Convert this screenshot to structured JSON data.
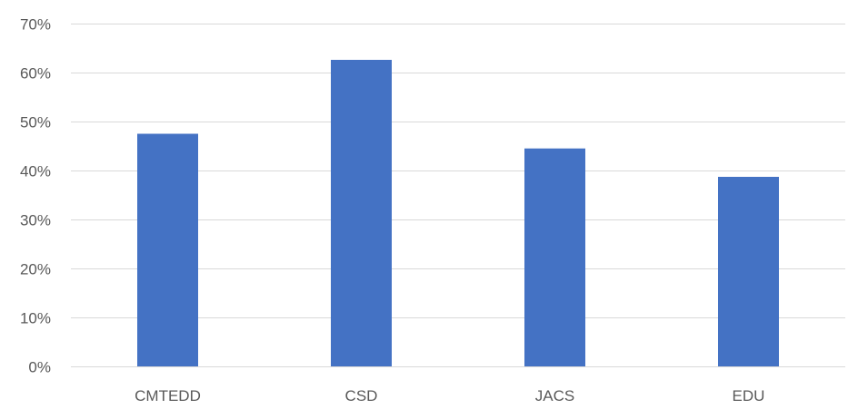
{
  "chart_data": {
    "type": "bar",
    "title": "",
    "xlabel": "",
    "ylabel": "",
    "categories": [
      "CMTEDD",
      "CSD",
      "JACS",
      "EDU"
    ],
    "values": [
      47.5,
      62.6,
      44.5,
      38.7
    ],
    "y_unit": "%",
    "ylim": [
      0,
      70
    ],
    "yticks": [
      0,
      10,
      20,
      30,
      40,
      50,
      60,
      70
    ],
    "ytick_labels": [
      "0%",
      "10%",
      "20%",
      "30%",
      "40%",
      "50%",
      "60%",
      "70%"
    ],
    "grid": true,
    "legend": "none",
    "bar_color": "#4472c4",
    "grid_color": "#d9d9d9",
    "text_color": "#595959"
  }
}
